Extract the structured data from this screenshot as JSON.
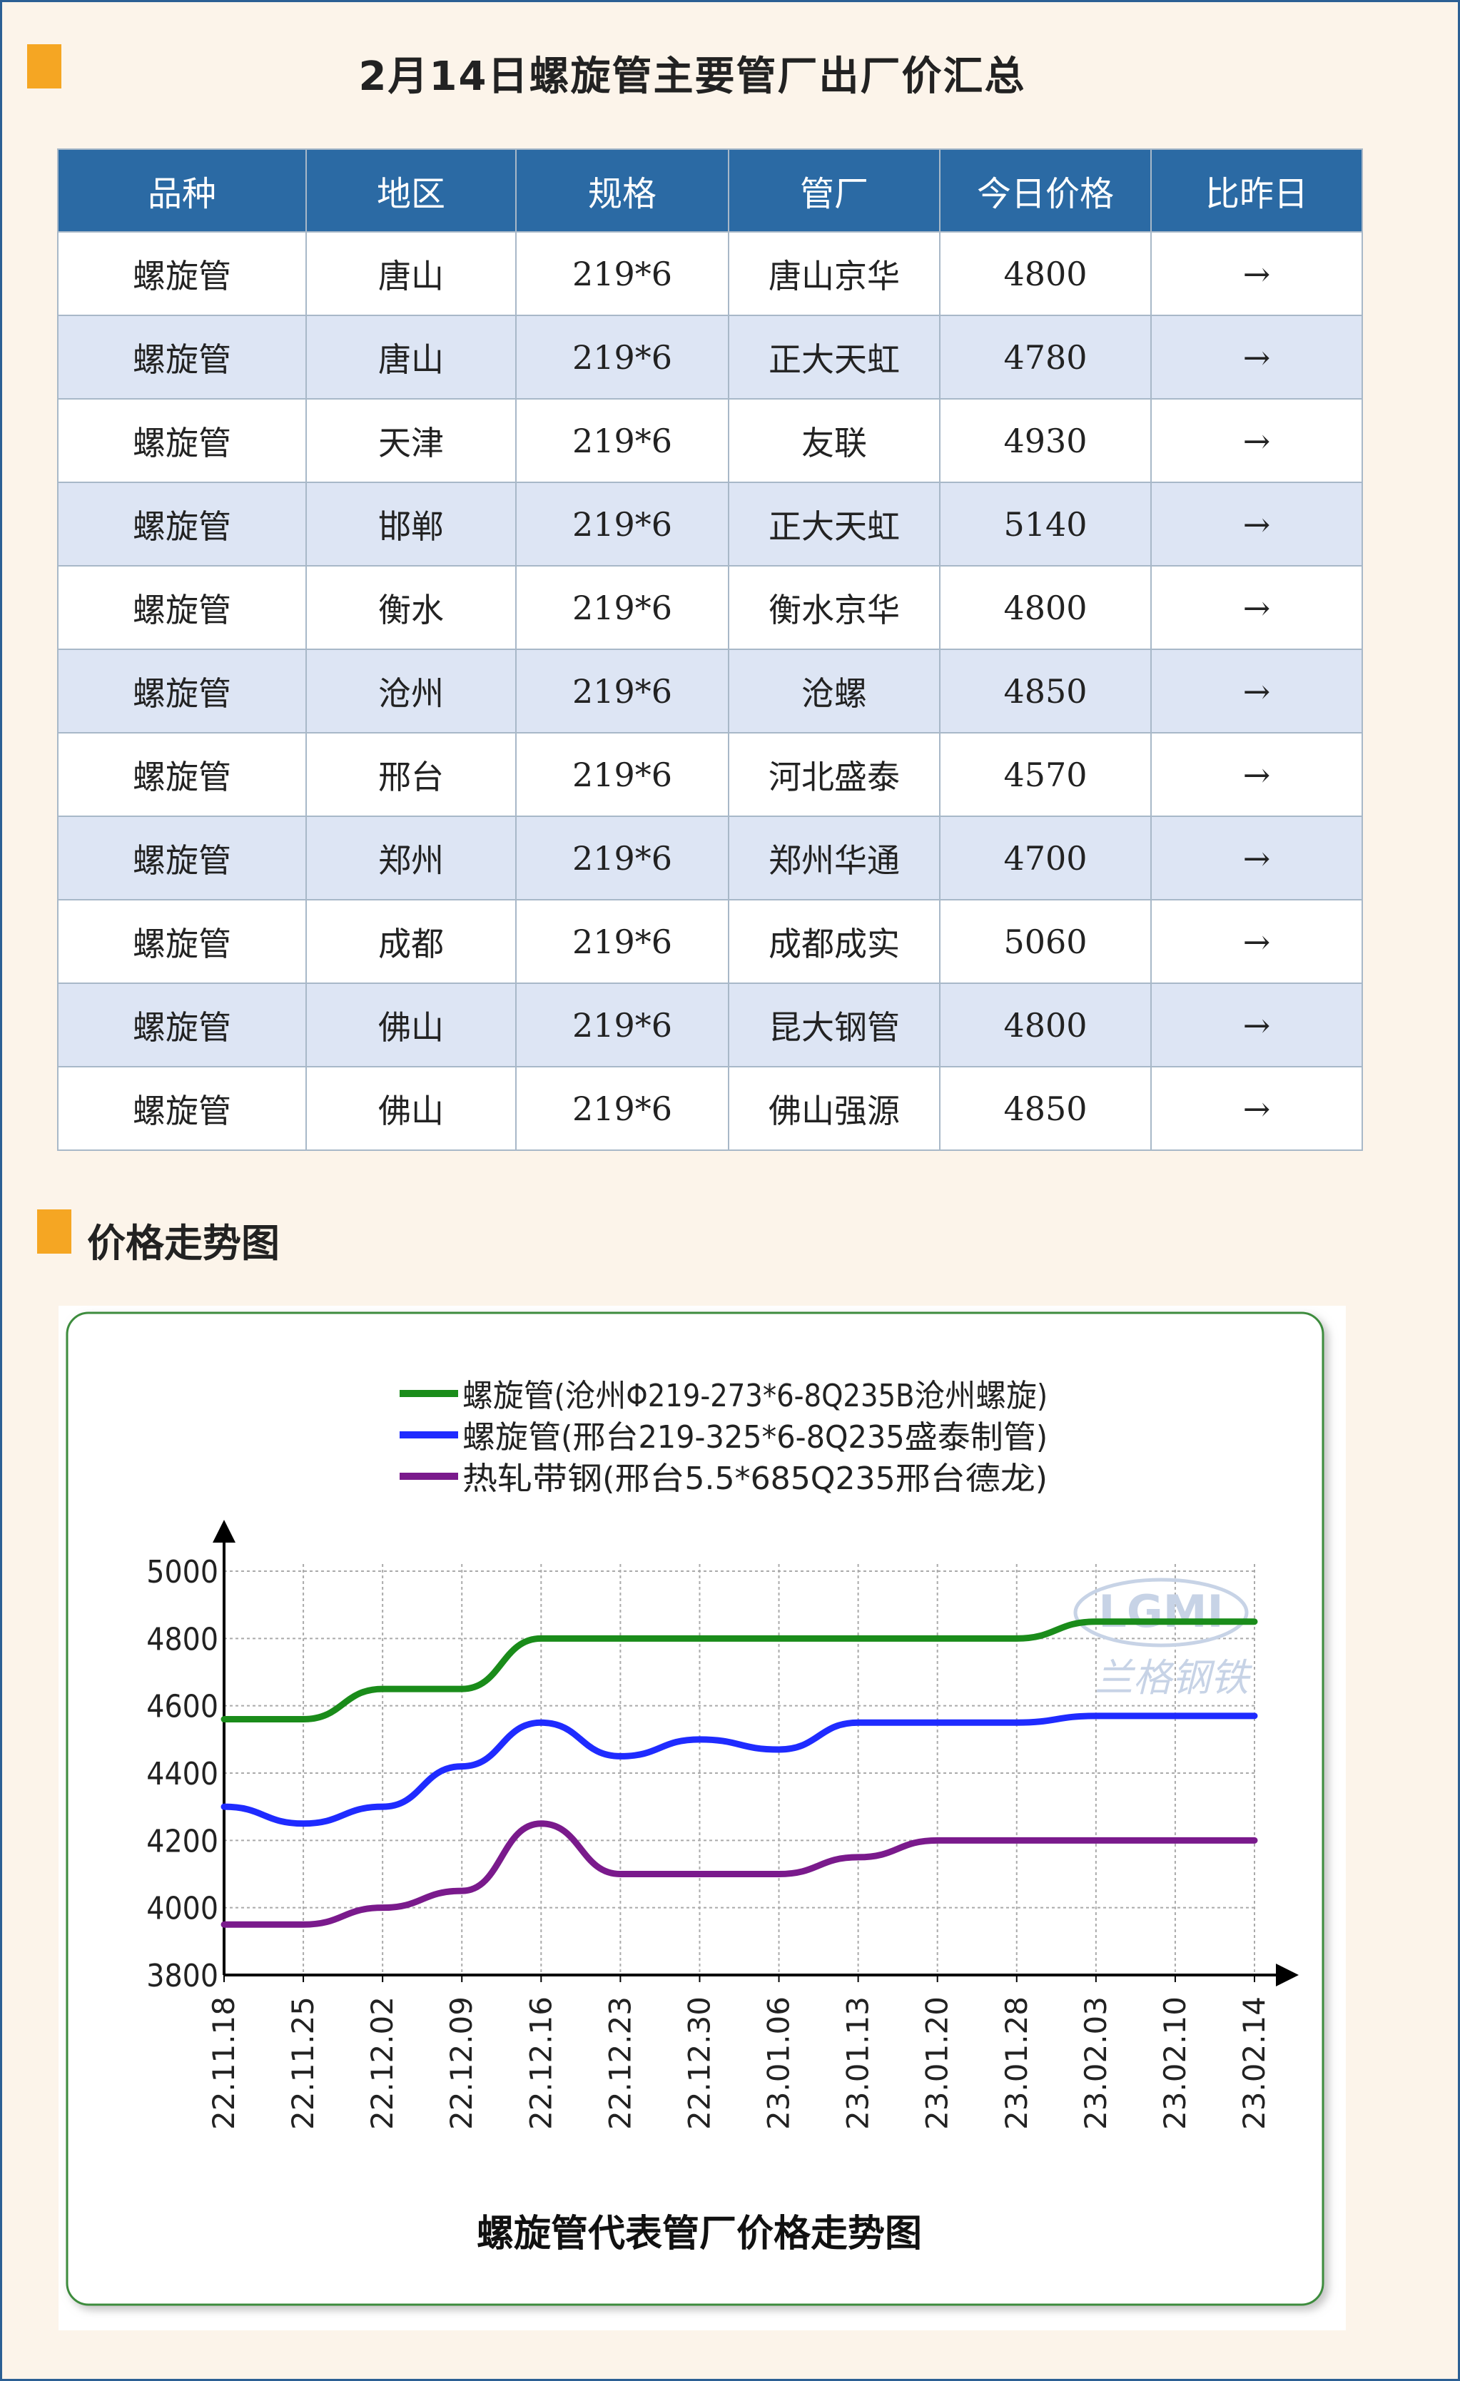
{
  "page_title": "2月14日螺旋管主要管厂出厂价汇总",
  "section_title": "价格走势图",
  "table": {
    "headers": [
      "品种",
      "地区",
      "规格",
      "管厂",
      "今日价格",
      "比昨日"
    ],
    "rows": [
      [
        "螺旋管",
        "唐山",
        "219*6",
        "唐山京华",
        "4800",
        "→"
      ],
      [
        "螺旋管",
        "唐山",
        "219*6",
        "正大天虹",
        "4780",
        "→"
      ],
      [
        "螺旋管",
        "天津",
        "219*6",
        "友联",
        "4930",
        "→"
      ],
      [
        "螺旋管",
        "邯郸",
        "219*6",
        "正大天虹",
        "5140",
        "→"
      ],
      [
        "螺旋管",
        "衡水",
        "219*6",
        "衡水京华",
        "4800",
        "→"
      ],
      [
        "螺旋管",
        "沧州",
        "219*6",
        "沧螺",
        "4850",
        "→"
      ],
      [
        "螺旋管",
        "邢台",
        "219*6",
        "河北盛泰",
        "4570",
        "→"
      ],
      [
        "螺旋管",
        "郑州",
        "219*6",
        "郑州华通",
        "4700",
        "→"
      ],
      [
        "螺旋管",
        "成都",
        "219*6",
        "成都成实",
        "5060",
        "→"
      ],
      [
        "螺旋管",
        "佛山",
        "219*6",
        "昆大钢管",
        "4800",
        "→"
      ],
      [
        "螺旋管",
        "佛山",
        "219*6",
        "佛山强源",
        "4850",
        "→"
      ]
    ]
  },
  "chart_data": {
    "type": "line",
    "title": "螺旋管代表管厂价格走势图",
    "xlabel": "",
    "ylabel": "",
    "categories": [
      "22.11.18",
      "22.11.25",
      "22.12.02",
      "22.12.09",
      "22.12.16",
      "22.12.23",
      "22.12.30",
      "23.01.06",
      "23.01.13",
      "23.01.20",
      "23.01.28",
      "23.02.03",
      "23.02.10",
      "23.02.14"
    ],
    "ylim": [
      3800,
      5000
    ],
    "yticks": [
      "5000",
      "4800",
      "4600",
      "4400",
      "4200",
      "4000",
      "3800"
    ],
    "grid": true,
    "legend_position": "top",
    "watermark": "LGMI 兰格钢铁",
    "series": [
      {
        "name": "螺旋管(沧州Φ219-273*6-8Q235B沧州螺旋)",
        "color": "#1a8c1a",
        "values": [
          4560,
          4560,
          4650,
          4650,
          4800,
          4800,
          4800,
          4800,
          4800,
          4800,
          4800,
          4850,
          4850,
          4850
        ]
      },
      {
        "name": "螺旋管(邢台219-325*6-8Q235盛泰制管)",
        "color": "#1f2bff",
        "values": [
          4300,
          4250,
          4300,
          4420,
          4550,
          4450,
          4500,
          4470,
          4550,
          4550,
          4550,
          4570,
          4570,
          4570
        ]
      },
      {
        "name": "热轧带钢(邢台5.5*685Q235邢台德龙)",
        "color": "#7a1a8c",
        "values": [
          3950,
          3950,
          4000,
          4050,
          4250,
          4100,
          4100,
          4100,
          4150,
          4200,
          4200,
          4200,
          4200,
          4200
        ]
      }
    ]
  }
}
